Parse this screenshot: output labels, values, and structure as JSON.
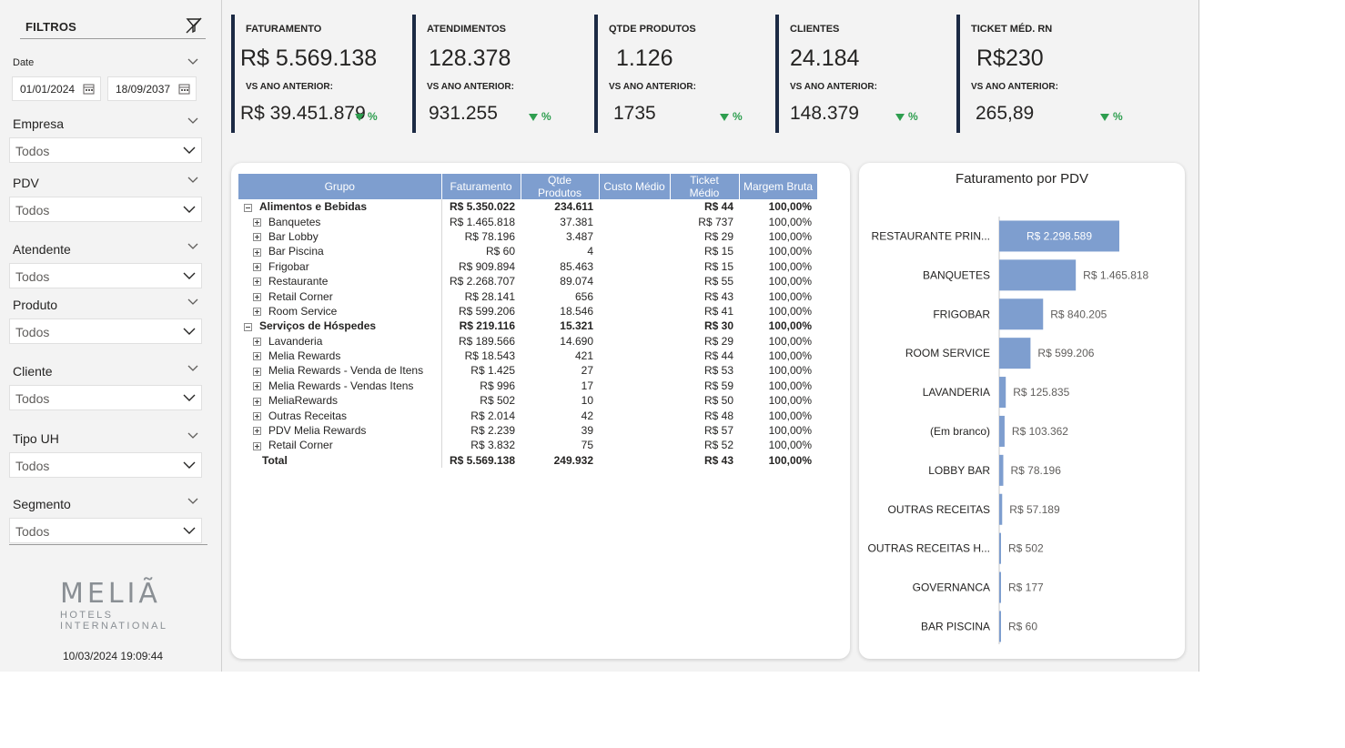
{
  "sidebar": {
    "title": "FILTROS",
    "date_label": "Date",
    "date_start": "01/01/2024",
    "date_end": "18/09/2037",
    "slicers": [
      {
        "label": "Empresa",
        "value": "Todos"
      },
      {
        "label": "PDV",
        "value": "Todos"
      },
      {
        "label": "Atendente",
        "value": "Todos"
      },
      {
        "label": "Produto",
        "value": "Todos"
      },
      {
        "label": "Cliente",
        "value": "Todos"
      },
      {
        "label": "Tipo UH",
        "value": "Todos"
      },
      {
        "label": "Segmento",
        "value": "Todos"
      }
    ],
    "logo_main": "MELIÃ",
    "logo_sub1": "HOTELS",
    "logo_sub2": "INTERNATIONAL",
    "updated": "10/03/2024 19:09:44"
  },
  "kpis": [
    {
      "title": "FATURAMENTO",
      "value": "R$ 5.569.138",
      "sub": "VS ANO ANTERIOR:",
      "prev": "R$ 39.451.879",
      "pct": "%"
    },
    {
      "title": "ATENDIMENTOS",
      "value": "128.378",
      "sub": "VS ANO ANTERIOR:",
      "prev": "931.255",
      "pct": "%"
    },
    {
      "title": "QTDE PRODUTOS",
      "value": "1.126",
      "sub": "VS ANO ANTERIOR:",
      "prev": "1735",
      "pct": "%"
    },
    {
      "title": "CLIENTES",
      "value": "24.184",
      "sub": "VS ANO ANTERIOR:",
      "prev": "148.379",
      "pct": "%"
    },
    {
      "title": "TICKET MÉD. RN",
      "value": "R$230",
      "sub": "VS ANO ANTERIOR:",
      "prev": "265,89",
      "pct": "%"
    }
  ],
  "table": {
    "headers": [
      "Grupo",
      "Faturamento",
      "Qtde Produtos",
      "Custo Médio",
      "Ticket Médio",
      "Margem Bruta"
    ],
    "rows": [
      {
        "level": 0,
        "name": "Alimentos e Bebidas",
        "fat": "R$ 5.350.022",
        "qtd": "234.611",
        "custo": "",
        "ticket": "R$ 44",
        "margem": "100,00%"
      },
      {
        "level": 1,
        "name": "Banquetes",
        "fat": "R$ 1.465.818",
        "qtd": "37.381",
        "custo": "",
        "ticket": "R$ 737",
        "margem": "100,00%"
      },
      {
        "level": 1,
        "name": "Bar Lobby",
        "fat": "R$ 78.196",
        "qtd": "3.487",
        "custo": "",
        "ticket": "R$ 29",
        "margem": "100,00%"
      },
      {
        "level": 1,
        "name": "Bar Piscina",
        "fat": "R$ 60",
        "qtd": "4",
        "custo": "",
        "ticket": "R$ 15",
        "margem": "100,00%"
      },
      {
        "level": 1,
        "name": "Frigobar",
        "fat": "R$ 909.894",
        "qtd": "85.463",
        "custo": "",
        "ticket": "R$ 15",
        "margem": "100,00%"
      },
      {
        "level": 1,
        "name": "Restaurante",
        "fat": "R$ 2.268.707",
        "qtd": "89.074",
        "custo": "",
        "ticket": "R$ 55",
        "margem": "100,00%"
      },
      {
        "level": 1,
        "name": "Retail Corner",
        "fat": "R$ 28.141",
        "qtd": "656",
        "custo": "",
        "ticket": "R$ 43",
        "margem": "100,00%"
      },
      {
        "level": 1,
        "name": "Room Service",
        "fat": "R$ 599.206",
        "qtd": "18.546",
        "custo": "",
        "ticket": "R$ 41",
        "margem": "100,00%"
      },
      {
        "level": 0,
        "name": "Serviços de Hóspedes",
        "fat": "R$ 219.116",
        "qtd": "15.321",
        "custo": "",
        "ticket": "R$ 30",
        "margem": "100,00%"
      },
      {
        "level": 1,
        "name": "Lavanderia",
        "fat": "R$ 189.566",
        "qtd": "14.690",
        "custo": "",
        "ticket": "R$ 29",
        "margem": "100,00%"
      },
      {
        "level": 1,
        "name": "Melia Rewards",
        "fat": "R$ 18.543",
        "qtd": "421",
        "custo": "",
        "ticket": "R$ 44",
        "margem": "100,00%"
      },
      {
        "level": 1,
        "name": "Melia Rewards - Venda de Itens",
        "fat": "R$ 1.425",
        "qtd": "27",
        "custo": "",
        "ticket": "R$ 53",
        "margem": "100,00%"
      },
      {
        "level": 1,
        "name": "Melia Rewards - Vendas Itens",
        "fat": "R$ 996",
        "qtd": "17",
        "custo": "",
        "ticket": "R$ 59",
        "margem": "100,00%"
      },
      {
        "level": 1,
        "name": "MeliaRewards",
        "fat": "R$ 502",
        "qtd": "10",
        "custo": "",
        "ticket": "R$ 50",
        "margem": "100,00%"
      },
      {
        "level": 1,
        "name": "Outras Receitas",
        "fat": "R$ 2.014",
        "qtd": "42",
        "custo": "",
        "ticket": "R$ 48",
        "margem": "100,00%"
      },
      {
        "level": 1,
        "name": "PDV Melia Rewards",
        "fat": "R$ 2.239",
        "qtd": "39",
        "custo": "",
        "ticket": "R$ 57",
        "margem": "100,00%"
      },
      {
        "level": 1,
        "name": "Retail Corner",
        "fat": "R$ 3.832",
        "qtd": "75",
        "custo": "",
        "ticket": "R$ 52",
        "margem": "100,00%"
      }
    ],
    "total": {
      "name": "Total",
      "fat": "R$ 5.569.138",
      "qtd": "249.932",
      "custo": "",
      "ticket": "R$ 43",
      "margem": "100,00%"
    }
  },
  "chart_data": {
    "type": "bar",
    "orientation": "horizontal",
    "title": "Faturamento por PDV",
    "categories": [
      "RESTAURANTE PRIN...",
      "BANQUETES",
      "FRIGOBAR",
      "ROOM SERVICE",
      "LAVANDERIA",
      "(Em branco)",
      "LOBBY BAR",
      "OUTRAS RECEITAS",
      "OUTRAS RECEITAS H...",
      "GOVERNANCA",
      "BAR PISCINA"
    ],
    "values": [
      2298589,
      1465818,
      840205,
      599206,
      125835,
      103362,
      78196,
      57189,
      502,
      177,
      60
    ],
    "labels": [
      "R$ 2.298.589",
      "R$ 1.465.818",
      "R$ 840.205",
      "R$ 599.206",
      "R$ 125.835",
      "R$ 103.362",
      "R$ 78.196",
      "R$ 57.189",
      "R$ 502",
      "R$ 177",
      "R$ 60"
    ],
    "color": "#7e9ecf"
  }
}
